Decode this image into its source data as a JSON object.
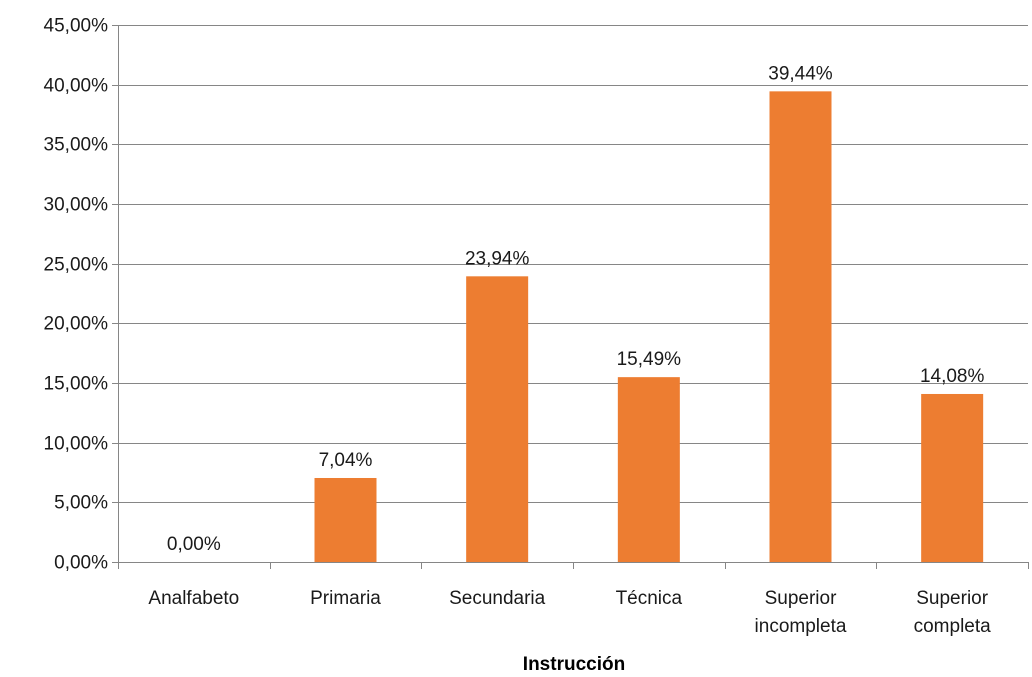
{
  "chart_data": {
    "type": "bar",
    "categories": [
      [
        "Analfabeto"
      ],
      [
        "Primaria"
      ],
      [
        "Secundaria"
      ],
      [
        "Técnica"
      ],
      [
        "Superior",
        "incompleta"
      ],
      [
        "Superior",
        "completa"
      ]
    ],
    "values": [
      0.0,
      7.04,
      23.94,
      15.49,
      39.44,
      14.08
    ],
    "data_labels": [
      "0,00%",
      "7,04%",
      "23,94%",
      "15,49%",
      "39,44%",
      "14,08%"
    ],
    "title": "",
    "xlabel": "Instrucción",
    "ylabel": "",
    "ylim": [
      0,
      45
    ],
    "yticks": [
      0,
      5,
      10,
      15,
      20,
      25,
      30,
      35,
      40,
      45
    ],
    "ytick_labels": [
      "0,00%",
      "5,00%",
      "10,00%",
      "15,00%",
      "20,00%",
      "25,00%",
      "30,00%",
      "35,00%",
      "40,00%",
      "45,00%"
    ],
    "grid": true,
    "legend": "none",
    "colors": {
      "bar": "#ED7D31",
      "grid": "#868686",
      "axis": "#868686"
    }
  }
}
